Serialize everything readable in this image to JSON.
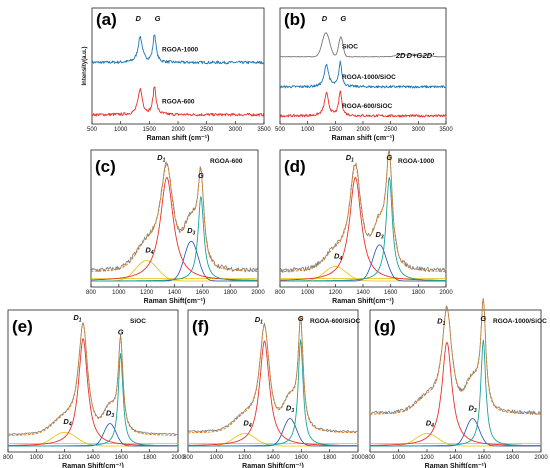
{
  "panels": [
    {
      "id": "a",
      "letter": "(a)",
      "type": "line",
      "xlabel": "Raman shift (cm⁻¹)",
      "ylabel": "Intensity(a.u.)",
      "xlim": [
        500,
        3500
      ],
      "xticks": [
        500,
        1000,
        1500,
        2000,
        2500,
        3000,
        3500
      ],
      "peaks": [
        "D",
        "G"
      ],
      "series": [
        {
          "name": "RGOA-1000",
          "color": "#1f77b4"
        },
        {
          "name": "RGOA-600",
          "color": "#e8322d"
        }
      ]
    },
    {
      "id": "b",
      "letter": "(b)",
      "type": "line",
      "xlabel": "Raman shift (cm⁻¹)",
      "xlim": [
        500,
        3500
      ],
      "xticks": [
        500,
        1000,
        1500,
        2000,
        2500,
        3000,
        3500
      ],
      "peaks": [
        "D",
        "G"
      ],
      "annotations": [
        "2D",
        "D+G",
        "2D'"
      ],
      "series": [
        {
          "name": "SiOC",
          "color": "#777777"
        },
        {
          "name": "RGOA-1000/SiOC",
          "color": "#1f77b4"
        },
        {
          "name": "RGOA-600/SiOC",
          "color": "#e8322d"
        }
      ]
    },
    {
      "id": "c",
      "letter": "(c)",
      "type": "line",
      "sample": "RGOA-600",
      "xlabel": "Raman Shift(cm⁻¹)",
      "xlim": [
        800,
        2000
      ],
      "xticks": [
        800,
        1000,
        1200,
        1400,
        1600,
        1800,
        2000
      ],
      "components": [
        "D1",
        "G",
        "D3",
        "D4"
      ]
    },
    {
      "id": "d",
      "letter": "(d)",
      "type": "line",
      "sample": "RGOA-1000",
      "xlabel": "Raman Shift(cm⁻¹)",
      "xlim": [
        800,
        2000
      ],
      "xticks": [
        800,
        1000,
        1200,
        1400,
        1600,
        1800,
        2000
      ],
      "components": [
        "D1",
        "G",
        "D3",
        "D4"
      ]
    },
    {
      "id": "e",
      "letter": "(e)",
      "type": "line",
      "sample": "SiOC",
      "xlabel": "Raman Shift(cm⁻¹)",
      "xlim": [
        800,
        2000
      ],
      "xticks": [
        800,
        1000,
        1200,
        1400,
        1600,
        1800,
        2000
      ],
      "components": [
        "D1",
        "G",
        "D3",
        "D4"
      ]
    },
    {
      "id": "f",
      "letter": "(f)",
      "type": "line",
      "sample": "RGOA-600/SiOC",
      "xlabel": "Raman Shift(cm⁻¹)",
      "xlim": [
        800,
        2000
      ],
      "xticks": [
        800,
        1000,
        1200,
        1400,
        1600,
        1800,
        2000
      ],
      "components": [
        "D1",
        "G",
        "D3",
        "D4"
      ]
    },
    {
      "id": "g",
      "letter": "(g)",
      "type": "line",
      "sample": "RGOA-1000/SiOC",
      "xlabel": "Raman Shift(cm⁻¹)",
      "xlim": [
        800,
        2000
      ],
      "xticks": [
        800,
        1000,
        1200,
        1400,
        1600,
        1800,
        2000
      ],
      "components": [
        "D1",
        "G",
        "D3",
        "D4"
      ]
    }
  ],
  "chart_data": [
    {
      "type": "line",
      "panel": "a",
      "xlabel": "Raman shift (cm⁻¹)",
      "ylabel": "Intensity(a.u.)",
      "xlim": [
        500,
        3500
      ],
      "series": [
        {
          "name": "RGOA-1000",
          "peaks": [
            {
              "x": 1340,
              "label": "D"
            },
            {
              "x": 1590,
              "label": "G"
            }
          ]
        },
        {
          "name": "RGOA-600",
          "peaks": [
            {
              "x": 1340,
              "label": "D"
            },
            {
              "x": 1590,
              "label": "G"
            }
          ]
        }
      ]
    },
    {
      "type": "line",
      "panel": "b",
      "xlabel": "Raman shift (cm⁻¹)",
      "xlim": [
        500,
        3500
      ],
      "series": [
        {
          "name": "SiOC",
          "peaks": [
            {
              "x": 1330,
              "label": "D"
            },
            {
              "x": 1600,
              "label": "G"
            },
            {
              "x": 2680,
              "label": "2D"
            },
            {
              "x": 2930,
              "label": "D+G"
            },
            {
              "x": 3180,
              "label": "2D'"
            }
          ]
        },
        {
          "name": "RGOA-1000/SiOC",
          "peaks": [
            {
              "x": 1340,
              "label": "D"
            },
            {
              "x": 1590,
              "label": "G"
            }
          ]
        },
        {
          "name": "RGOA-600/SiOC",
          "peaks": [
            {
              "x": 1340,
              "label": "D"
            },
            {
              "x": 1590,
              "label": "G"
            }
          ]
        }
      ]
    },
    {
      "type": "line",
      "panel": "c",
      "sample": "RGOA-600",
      "xlim": [
        800,
        2000
      ],
      "fit": {
        "D1": 1345,
        "G": 1590,
        "D3": 1520,
        "D4": 1200
      }
    },
    {
      "type": "line",
      "panel": "d",
      "sample": "RGOA-1000",
      "xlim": [
        800,
        2000
      ],
      "fit": {
        "D1": 1345,
        "G": 1590,
        "D3": 1520,
        "D4": 1200
      }
    },
    {
      "type": "line",
      "panel": "e",
      "sample": "SiOC",
      "xlim": [
        800,
        2000
      ],
      "fit": {
        "D1": 1330,
        "G": 1595,
        "D3": 1520,
        "D4": 1200
      }
    },
    {
      "type": "line",
      "panel": "f",
      "sample": "RGOA-600/SiOC",
      "xlim": [
        800,
        2000
      ],
      "fit": {
        "D1": 1340,
        "G": 1595,
        "D3": 1520,
        "D4": 1200
      }
    },
    {
      "type": "line",
      "panel": "g",
      "sample": "RGOA-1000/SiOC",
      "xlim": [
        800,
        2000
      ],
      "fit": {
        "D1": 1340,
        "G": 1595,
        "D3": 1520,
        "D4": 1200
      }
    }
  ]
}
